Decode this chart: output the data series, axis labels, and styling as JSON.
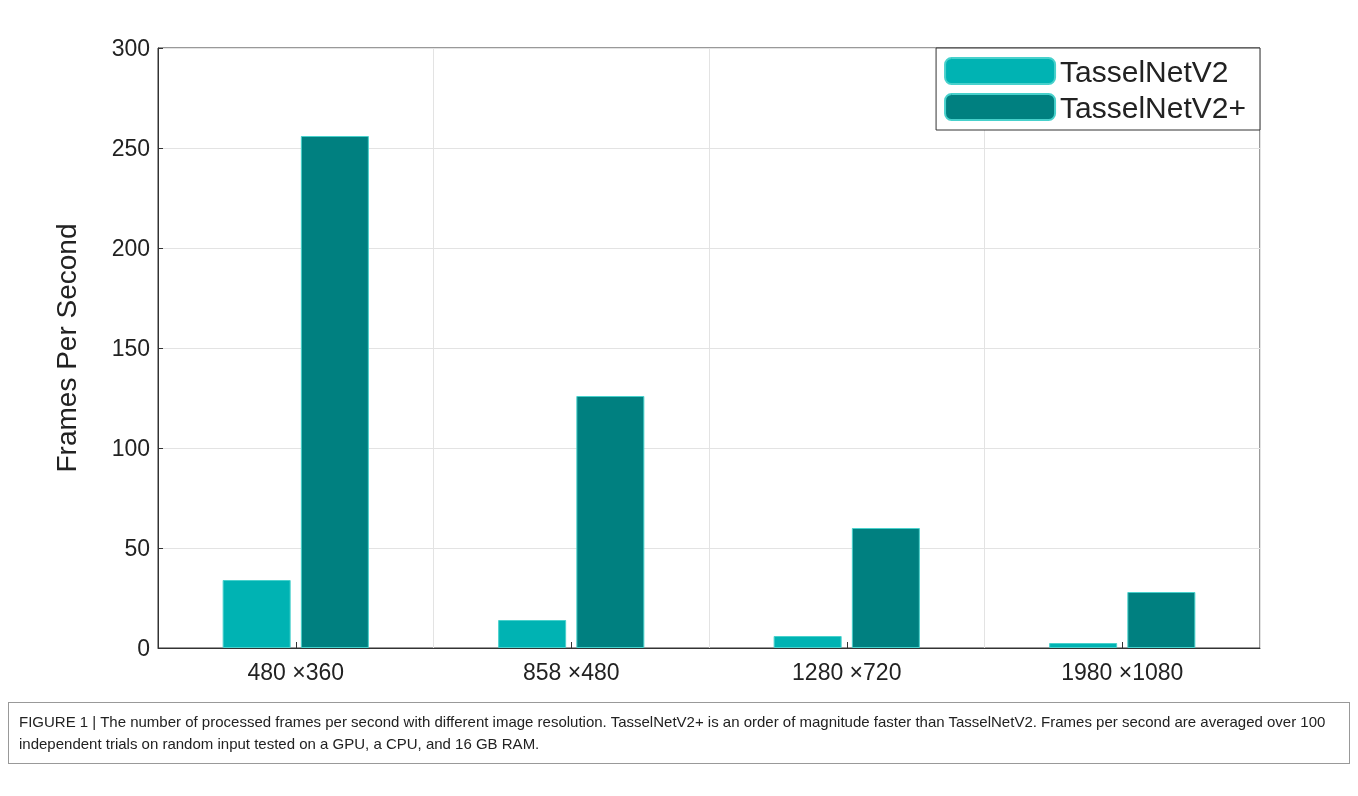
{
  "chart_data": {
    "type": "bar",
    "ylabel": "Frames Per Second",
    "categories": [
      "480 ×360",
      "858 ×480",
      "1280 ×720",
      "1980 ×1080"
    ],
    "series": [
      {
        "name": "TasselNetV2",
        "color": "#00b3b3",
        "values": [
          34,
          14,
          6,
          2.5
        ]
      },
      {
        "name": "TasselNetV2+",
        "color": "#008080",
        "values": [
          256,
          126,
          60,
          28
        ]
      }
    ],
    "ylim": [
      0,
      300
    ],
    "yticks": [
      0,
      50,
      100,
      150,
      200,
      250,
      300
    ],
    "grid": true,
    "legend": "top right",
    "annotations": [
      "FIGURE 1 | The number of processed frames per second with different image resolution. TasselNetV2+ is an order of magnitude faster than TasselNetV2. Frames per second are averaged over 100 independent trials on random input tested on a GPU, a CPU, and 16 GB RAM."
    ]
  }
}
